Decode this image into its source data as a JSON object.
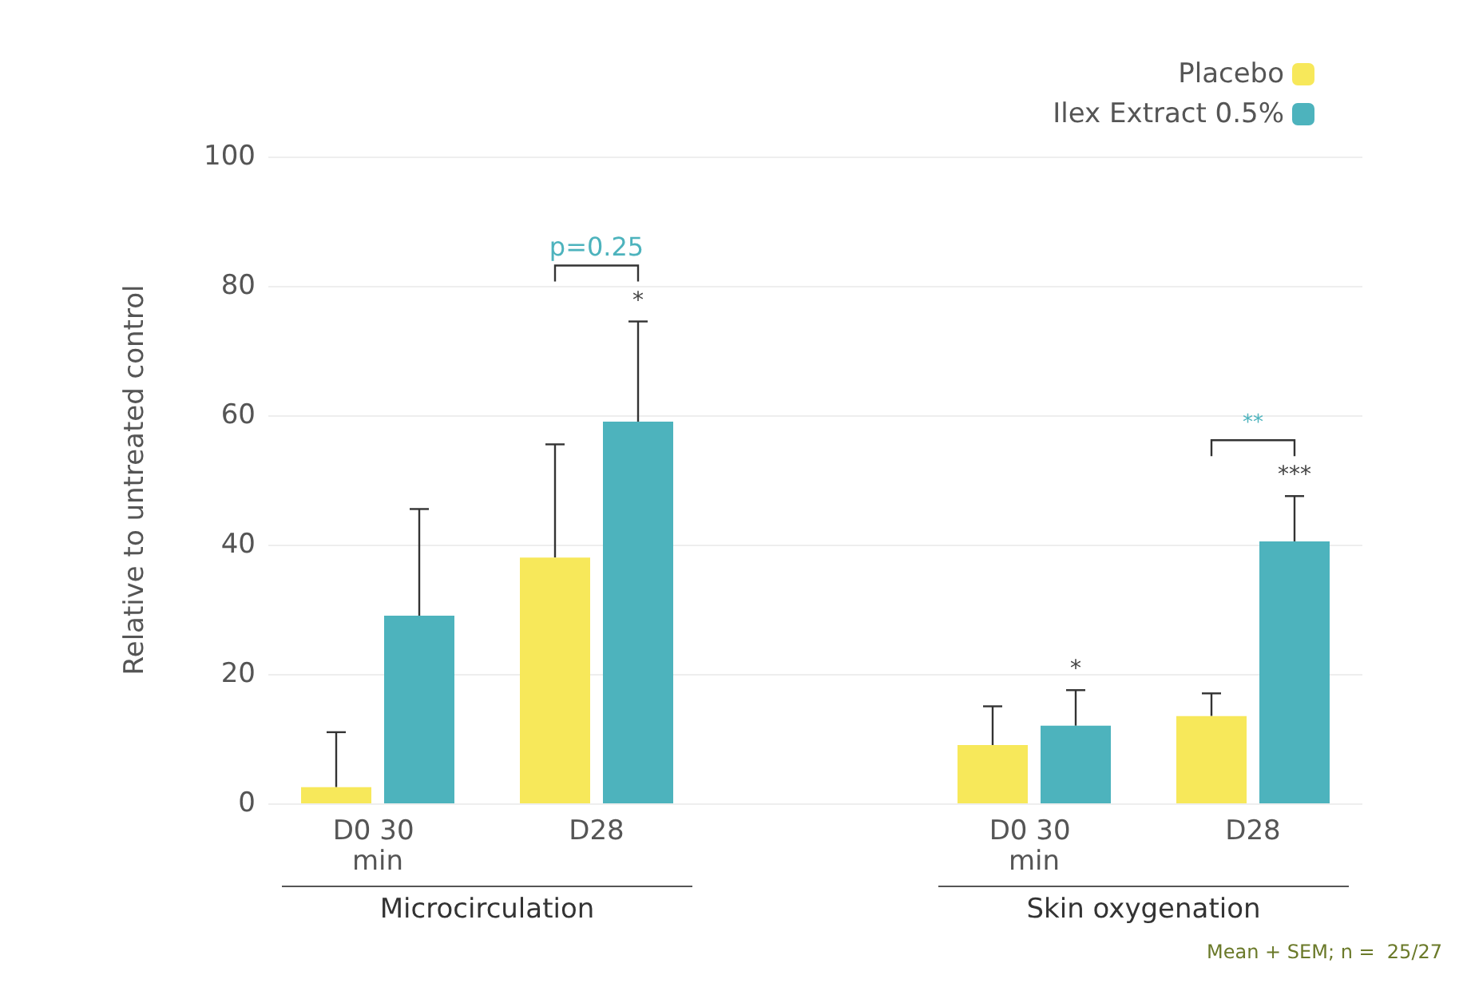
{
  "chart_data": {
    "type": "bar",
    "ylabel": "Relative to untreated control",
    "categories": [
      "D0 30 min",
      "D28",
      null,
      "D0 30 min",
      "D28"
    ],
    "series": [
      {
        "name": "Placebo",
        "color": "#f7e85a",
        "values": [
          2.5,
          38,
          null,
          9,
          13.5
        ],
        "errors": [
          [
            2.5,
            11
          ],
          [
            38,
            55.5
          ],
          null,
          [
            9,
            15
          ],
          [
            13.5,
            17
          ]
        ]
      },
      {
        "name": "Ilex Extract 0.5%",
        "color": "#4db3bd",
        "values": [
          29,
          59,
          null,
          12,
          40.5
        ],
        "errors": [
          [
            29,
            45.5
          ],
          [
            59,
            74.5
          ],
          null,
          [
            12,
            17.5
          ],
          [
            40.5,
            47.5
          ]
        ]
      }
    ],
    "ylim": [
      0,
      100
    ],
    "yticks": [
      0,
      20,
      40,
      60,
      80,
      100
    ],
    "grid": "y",
    "legend": "top right",
    "annotations": [
      "p=0.25",
      "*",
      "**",
      "***",
      "*",
      "Microcirculation",
      "Skin oxygenation",
      "Mean + SEM; n =  25/27"
    ]
  }
}
